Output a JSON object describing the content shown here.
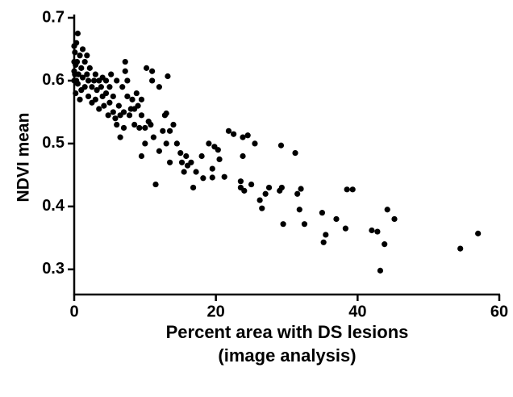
{
  "chart_data": {
    "type": "scatter",
    "y_label": "NDVI mean",
    "x_label": [
      "Percent area with DS lesions",
      "(image analysis)"
    ],
    "color": "#000000",
    "xlim": [
      0,
      60
    ],
    "ylim": [
      0.26,
      0.7
    ],
    "xticks": [
      0,
      20,
      40,
      60
    ],
    "yticks": [
      0.3,
      0.4,
      0.5,
      0.6,
      0.7
    ],
    "x": [
      57,
      54.5,
      45.2,
      44.2,
      43.8,
      43.2,
      42.8,
      42,
      39.3,
      38.5,
      38.3,
      37,
      35.5,
      35.2,
      35,
      32.5,
      32,
      31.8,
      31.5,
      31.2,
      29.5,
      29.3,
      29.2,
      29,
      27.5,
      27,
      26.5,
      26.2,
      25.5,
      25,
      24.5,
      24,
      23.8,
      23.5,
      23.5,
      23.8,
      22.5,
      21.8,
      21.2,
      20.5,
      20.3,
      19.8,
      19.5,
      19.5,
      19,
      18,
      18.2,
      17.2,
      16.8,
      16.5,
      16,
      15.8,
      15.5,
      15.2,
      15,
      14.5,
      14,
      13.5,
      13.5,
      13,
      13.2,
      13,
      12.8,
      12.5,
      12,
      12,
      11.5,
      11.2,
      11,
      11,
      10.8,
      10.5,
      10.2,
      10,
      10,
      9.5,
      9.5,
      9.5,
      9.2,
      9,
      8.8,
      8.5,
      8.5,
      8.2,
      8,
      7.8,
      7.5,
      7.5,
      7.2,
      7.2,
      7,
      7,
      6.8,
      6.5,
      6.5,
      6.3,
      6,
      6,
      5.8,
      5.5,
      5.5,
      5.2,
      5,
      5,
      4.8,
      4.5,
      4.5,
      4.2,
      4,
      4,
      3.8,
      3.5,
      3.5,
      3.2,
      3,
      3,
      2.8,
      2.5,
      2.5,
      2.2,
      2,
      2,
      1.8,
      1.8,
      1.5,
      1.5,
      1.2,
      1.2,
      1,
      1,
      0.8,
      0.8,
      0.6,
      0.5,
      0.5,
      0.4,
      0.3,
      0.3,
      0.2,
      0.2,
      0.1,
      0.1,
      0,
      0,
      0,
      0
    ],
    "y": [
      0.357,
      0.333,
      0.38,
      0.395,
      0.34,
      0.298,
      0.36,
      0.362,
      0.427,
      0.427,
      0.365,
      0.38,
      0.355,
      0.343,
      0.39,
      0.372,
      0.428,
      0.395,
      0.42,
      0.485,
      0.372,
      0.43,
      0.497,
      0.425,
      0.43,
      0.42,
      0.397,
      0.41,
      0.5,
      0.435,
      0.513,
      0.425,
      0.48,
      0.43,
      0.44,
      0.51,
      0.515,
      0.52,
      0.447,
      0.475,
      0.49,
      0.495,
      0.46,
      0.446,
      0.5,
      0.48,
      0.445,
      0.455,
      0.43,
      0.47,
      0.465,
      0.48,
      0.455,
      0.47,
      0.485,
      0.5,
      0.53,
      0.52,
      0.47,
      0.548,
      0.607,
      0.5,
      0.545,
      0.52,
      0.488,
      0.59,
      0.435,
      0.51,
      0.615,
      0.6,
      0.53,
      0.535,
      0.62,
      0.5,
      0.525,
      0.48,
      0.545,
      0.57,
      0.525,
      0.56,
      0.58,
      0.555,
      0.53,
      0.57,
      0.555,
      0.545,
      0.6,
      0.575,
      0.63,
      0.615,
      0.525,
      0.55,
      0.59,
      0.545,
      0.51,
      0.56,
      0.6,
      0.53,
      0.54,
      0.575,
      0.55,
      0.61,
      0.59,
      0.565,
      0.545,
      0.6,
      0.58,
      0.56,
      0.605,
      0.575,
      0.59,
      0.6,
      0.555,
      0.585,
      0.57,
      0.61,
      0.6,
      0.59,
      0.565,
      0.62,
      0.6,
      0.575,
      0.64,
      0.61,
      0.63,
      0.59,
      0.65,
      0.605,
      0.62,
      0.585,
      0.64,
      0.57,
      0.61,
      0.675,
      0.595,
      0.63,
      0.66,
      0.6,
      0.625,
      0.58,
      0.645,
      0.61,
      0.655,
      0.63,
      0.6,
      0.615
    ]
  }
}
